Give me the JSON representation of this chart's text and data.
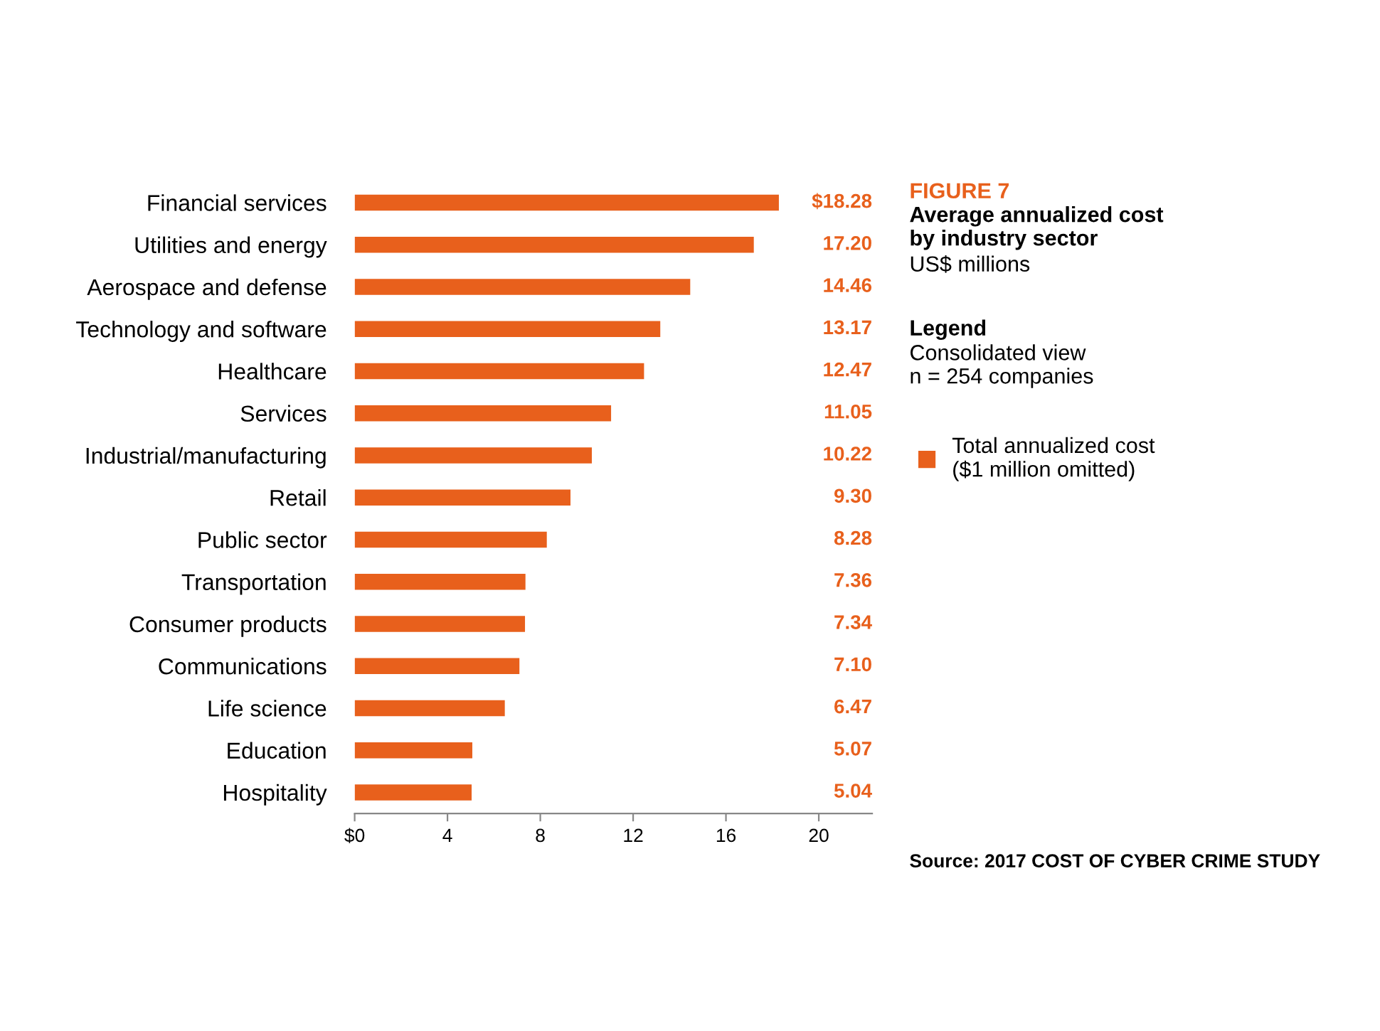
{
  "chart_data": {
    "type": "bar",
    "orientation": "horizontal",
    "title": "FIGURE 7",
    "subtitle": "Average annualized cost\nby industry sector",
    "annotations": [
      "US$ millions",
      "Legend",
      "Consolidated view\nn = 254 companies",
      "Source: 2017 COST OF CYBER CRIME STUDY"
    ],
    "categories": [
      "Financial services",
      "Utilities and energy",
      "Aerospace and defense",
      "Technology and software",
      "Healthcare",
      "Services",
      "Industrial/manufacturing",
      "Retail",
      "Public sector",
      "Transportation",
      "Consumer products",
      "Communications",
      "Life science",
      "Education",
      "Hospitality"
    ],
    "series": [
      {
        "name": "Total annualized cost\n($1 million omitted)",
        "color": "#e8601c",
        "values": [
          18.28,
          17.2,
          14.46,
          13.17,
          12.47,
          11.05,
          10.22,
          9.3,
          8.28,
          7.36,
          7.34,
          7.1,
          6.47,
          5.07,
          5.04
        ],
        "value_labels": [
          "$18.28",
          "17.20",
          "14.46",
          "13.17",
          "12.47",
          "11.05",
          "10.22",
          "9.30",
          "8.28",
          "7.36",
          "7.34",
          "7.10",
          "6.47",
          "5.07",
          "5.04"
        ]
      }
    ],
    "xlim": [
      0,
      22.3
    ],
    "xticks": [
      {
        "value": 0,
        "label": "$0"
      },
      4,
      8,
      12,
      16,
      20
    ],
    "grid": false,
    "legend": "right"
  }
}
